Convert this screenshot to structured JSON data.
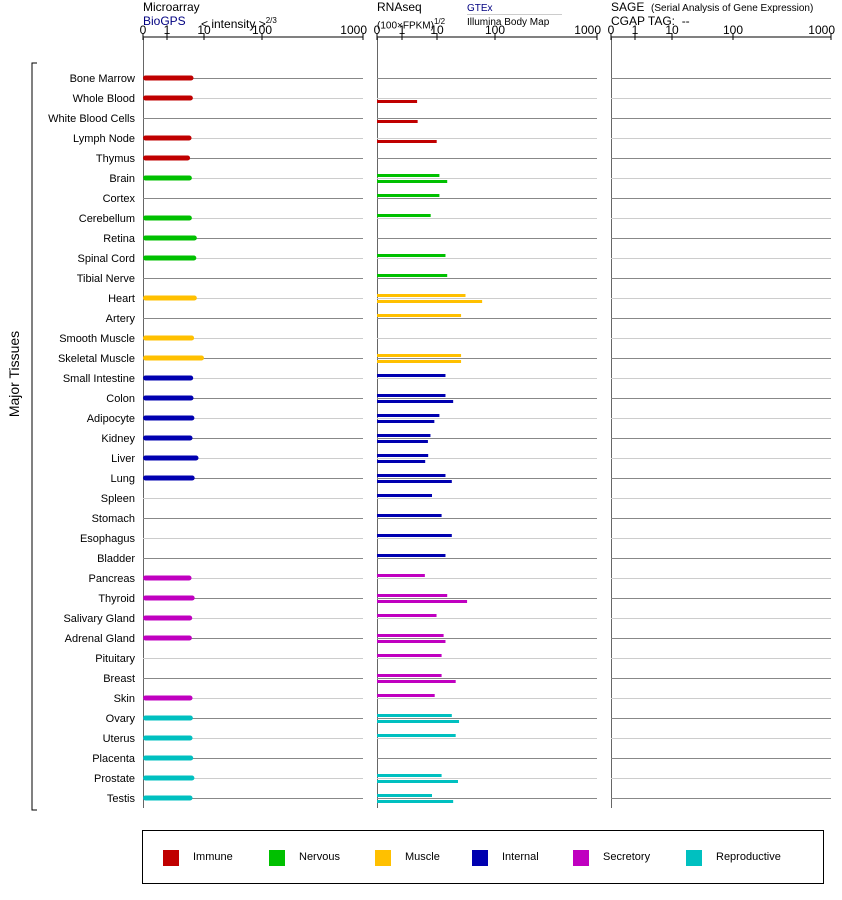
{
  "headers": {
    "microarray_title": "Microarray",
    "microarray_source": "BioGPS",
    "microarray_scale": "< intensity >",
    "microarray_scale_exp": "2/3",
    "rnaseq_title": "RNAseq",
    "rnaseq_scale": "(100×FPKM)",
    "rnaseq_scale_exp": "1/2",
    "rnaseq_source_1": "GTEx",
    "rnaseq_source_2": "Illumina Body Map",
    "sage_title": "SAGE",
    "sage_desc": "(Serial Analysis of Gene Expression)",
    "sage_tag": "CGAP TAG:  --"
  },
  "colors": {
    "Immune": "#c00000",
    "Nervous": "#00c000",
    "Muscle": "#ffc000",
    "Internal": "#0000b0",
    "Secretory": "#c000c0",
    "Reproductive": "#00c0c0"
  },
  "legend": [
    "Immune",
    "Nervous",
    "Muscle",
    "Internal",
    "Secretory",
    "Reproductive"
  ],
  "chart_data": {
    "type": "bar",
    "ylabel": "Major Tissues",
    "axis_ticks": [
      "0",
      "1",
      "10",
      "100",
      "1000"
    ],
    "tick_values": [
      0,
      1,
      10,
      100,
      1000
    ],
    "series": [
      {
        "name": "BioGPS"
      },
      {
        "name": "GTEx"
      },
      {
        "name": "Illumina Body Map"
      }
    ],
    "tissues": [
      {
        "name": "Bone Marrow",
        "system": "Immune",
        "microarray": 5.2,
        "gtex": null,
        "ibm": null
      },
      {
        "name": "Whole Blood",
        "system": "Immune",
        "microarray": 5.0,
        "gtex": null,
        "ibm": 2.7
      },
      {
        "name": "White Blood Cells",
        "system": "Immune",
        "microarray": null,
        "gtex": null,
        "ibm": 2.8
      },
      {
        "name": "Lymph Node",
        "system": "Immune",
        "microarray": 4.6,
        "gtex": null,
        "ibm": 9.8
      },
      {
        "name": "Thymus",
        "system": "Immune",
        "microarray": 4.2,
        "gtex": null,
        "ibm": null
      },
      {
        "name": "Brain",
        "system": "Nervous",
        "microarray": 4.7,
        "gtex": 11,
        "ibm": 15
      },
      {
        "name": "Cortex",
        "system": "Nervous",
        "microarray": null,
        "gtex": 11,
        "ibm": null
      },
      {
        "name": "Cerebellum",
        "system": "Nervous",
        "microarray": 4.7,
        "gtex": 6.6,
        "ibm": null
      },
      {
        "name": "Retina",
        "system": "Nervous",
        "microarray": 6.4,
        "gtex": null,
        "ibm": null
      },
      {
        "name": "Spinal Cord",
        "system": "Nervous",
        "microarray": 6.2,
        "gtex": 14,
        "ibm": null
      },
      {
        "name": "Tibial Nerve",
        "system": "Nervous",
        "microarray": null,
        "gtex": 15,
        "ibm": null
      },
      {
        "name": "Heart",
        "system": "Muscle",
        "microarray": 6.4,
        "gtex": 31,
        "ibm": 60
      },
      {
        "name": "Artery",
        "system": "Muscle",
        "microarray": null,
        "gtex": 26,
        "ibm": null
      },
      {
        "name": "Smooth Muscle",
        "system": "Muscle",
        "microarray": 5.4,
        "gtex": null,
        "ibm": null
      },
      {
        "name": "Skeletal Muscle",
        "system": "Muscle",
        "microarray": 10,
        "gtex": 26,
        "ibm": 26
      },
      {
        "name": "Small Intestine",
        "system": "Internal",
        "microarray": 5.1,
        "gtex": 14,
        "ibm": null
      },
      {
        "name": "Colon",
        "system": "Internal",
        "microarray": 5.2,
        "gtex": 14,
        "ibm": 19
      },
      {
        "name": "Adipocyte",
        "system": "Internal",
        "microarray": 5.5,
        "gtex": 11,
        "ibm": 8.4
      },
      {
        "name": "Kidney",
        "system": "Internal",
        "microarray": 4.9,
        "gtex": 6.5,
        "ibm": 5.5
      },
      {
        "name": "Liver",
        "system": "Internal",
        "microarray": 7.1,
        "gtex": 5.6,
        "ibm": 4.6
      },
      {
        "name": "Lung",
        "system": "Internal",
        "microarray": 5.6,
        "gtex": 14,
        "ibm": 18
      },
      {
        "name": "Spleen",
        "system": "Internal",
        "microarray": null,
        "gtex": 7.2,
        "ibm": null
      },
      {
        "name": "Stomach",
        "system": "Internal",
        "microarray": null,
        "gtex": 12,
        "ibm": null
      },
      {
        "name": "Esophagus",
        "system": "Internal",
        "microarray": null,
        "gtex": 18,
        "ibm": null
      },
      {
        "name": "Bladder",
        "system": "Internal",
        "microarray": null,
        "gtex": 14,
        "ibm": null
      },
      {
        "name": "Pancreas",
        "system": "Secretory",
        "microarray": 4.6,
        "gtex": 4.5,
        "ibm": null
      },
      {
        "name": "Thyroid",
        "system": "Secretory",
        "microarray": 5.6,
        "gtex": 15,
        "ibm": 33
      },
      {
        "name": "Salivary Gland",
        "system": "Secretory",
        "microarray": 4.8,
        "gtex": 9.7,
        "ibm": null
      },
      {
        "name": "Adrenal Gland",
        "system": "Secretory",
        "microarray": 4.7,
        "gtex": 13,
        "ibm": 14
      },
      {
        "name": "Pituitary",
        "system": "Secretory",
        "microarray": null,
        "gtex": 12,
        "ibm": null
      },
      {
        "name": "Breast",
        "system": "Secretory",
        "microarray": null,
        "gtex": 12,
        "ibm": 21
      },
      {
        "name": "Skin",
        "system": "Secretory",
        "microarray": 4.9,
        "gtex": 8.6,
        "ibm": null
      },
      {
        "name": "Ovary",
        "system": "Reproductive",
        "microarray": 5.0,
        "gtex": 18,
        "ibm": 24
      },
      {
        "name": "Uterus",
        "system": "Reproductive",
        "microarray": 4.9,
        "gtex": 21,
        "ibm": null
      },
      {
        "name": "Placenta",
        "system": "Reproductive",
        "microarray": 5.1,
        "gtex": null,
        "ibm": null
      },
      {
        "name": "Prostate",
        "system": "Reproductive",
        "microarray": 5.5,
        "gtex": 12,
        "ibm": 23
      },
      {
        "name": "Testis",
        "system": "Reproductive",
        "microarray": 4.9,
        "gtex": 7.2,
        "ibm": 19
      }
    ]
  }
}
